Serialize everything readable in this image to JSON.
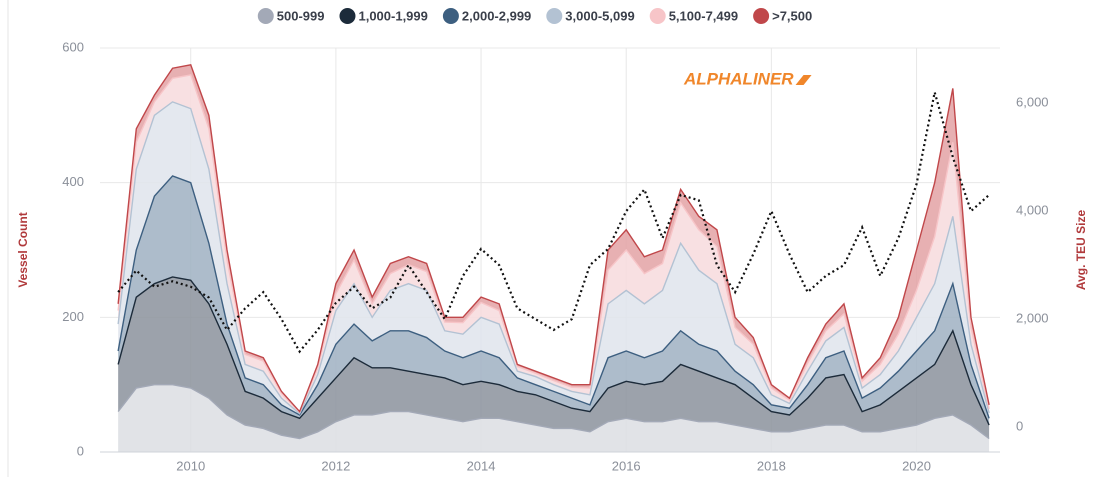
{
  "chart_data": {
    "type": "area",
    "stacked": true,
    "watermark": "ALPHALINER",
    "ylabel": "Vessel Count",
    "y2label": "Avg. TEU Size",
    "xlim": [
      2008.75,
      2021.15
    ],
    "xticks": [
      2010,
      2012,
      2014,
      2016,
      2018,
      2020
    ],
    "ylim": [
      0,
      600
    ],
    "yticks": [
      0,
      200,
      400,
      600
    ],
    "y2lim": [
      -460,
      7020
    ],
    "y2ticks": [
      0,
      {
        "value": 2000,
        "label": "2,000"
      },
      {
        "value": 4000,
        "label": "4,000"
      },
      {
        "value": 6000,
        "label": "6,000"
      }
    ],
    "grid": true,
    "legend": "top",
    "x": [
      2009,
      2009.25,
      2009.5,
      2009.75,
      2010,
      2010.25,
      2010.5,
      2010.75,
      2011,
      2011.25,
      2011.5,
      2011.75,
      2012,
      2012.25,
      2012.5,
      2012.75,
      2013,
      2013.25,
      2013.5,
      2013.75,
      2014,
      2014.25,
      2014.5,
      2014.75,
      2015,
      2015.25,
      2015.5,
      2015.75,
      2016,
      2016.25,
      2016.5,
      2016.75,
      2017,
      2017.25,
      2017.5,
      2017.75,
      2018,
      2018.25,
      2018.5,
      2018.75,
      2019,
      2019.25,
      2019.5,
      2019.75,
      2020,
      2020.25,
      2020.5,
      2020.75,
      2021
    ],
    "series": [
      {
        "name": "500-999",
        "color": "#a3a9b7",
        "fill": "#dcdee3",
        "values": [
          60,
          95,
          100,
          100,
          95,
          80,
          55,
          40,
          35,
          25,
          20,
          30,
          45,
          55,
          55,
          60,
          60,
          55,
          50,
          45,
          50,
          50,
          45,
          40,
          35,
          35,
          30,
          45,
          50,
          45,
          45,
          50,
          45,
          45,
          40,
          35,
          30,
          30,
          35,
          40,
          40,
          30,
          30,
          35,
          40,
          50,
          55,
          40,
          20
        ]
      },
      {
        "name": "1,000-1,999",
        "color": "#1c2b3a",
        "fill": "#8b929c",
        "values": [
          70,
          135,
          150,
          160,
          160,
          140,
          105,
          50,
          45,
          35,
          30,
          50,
          65,
          85,
          70,
          65,
          60,
          60,
          60,
          55,
          55,
          50,
          45,
          45,
          40,
          30,
          30,
          50,
          55,
          55,
          60,
          80,
          75,
          65,
          60,
          45,
          30,
          25,
          45,
          70,
          75,
          30,
          40,
          55,
          70,
          80,
          125,
          60,
          20
        ]
      },
      {
        "name": "2,000-2,999",
        "color": "#3d5f80",
        "fill": "#9fb0c2",
        "values": [
          20,
          70,
          130,
          150,
          145,
          90,
          30,
          20,
          20,
          10,
          5,
          20,
          50,
          50,
          40,
          55,
          60,
          55,
          40,
          40,
          45,
          40,
          20,
          15,
          15,
          15,
          10,
          45,
          45,
          40,
          45,
          50,
          40,
          40,
          20,
          20,
          10,
          10,
          20,
          30,
          35,
          20,
          25,
          30,
          40,
          50,
          70,
          30,
          10
        ]
      },
      {
        "name": "3,000-5,099",
        "color": "#b3c2d3",
        "fill": "#dfe4ec",
        "values": [
          40,
          120,
          120,
          110,
          110,
          110,
          60,
          20,
          20,
          10,
          2,
          15,
          50,
          60,
          35,
          60,
          70,
          70,
          30,
          35,
          50,
          50,
          10,
          12,
          10,
          10,
          15,
          80,
          90,
          80,
          90,
          130,
          110,
          100,
          40,
          40,
          15,
          7,
          20,
          25,
          35,
          15,
          20,
          30,
          50,
          70,
          100,
          30,
          8
        ]
      },
      {
        "name": "5,100-7,499",
        "color": "#f7c5c8",
        "fill": "#f7dadd",
        "values": [
          20,
          40,
          20,
          35,
          50,
          60,
          35,
          15,
          15,
          7,
          2,
          10,
          25,
          35,
          20,
          25,
          28,
          28,
          13,
          17,
          22,
          20,
          7,
          5,
          6,
          6,
          10,
          50,
          60,
          45,
          40,
          60,
          60,
          55,
          25,
          20,
          10,
          5,
          12,
          15,
          20,
          10,
          15,
          25,
          40,
          70,
          110,
          25,
          6
        ]
      },
      {
        "name": ">7,500",
        "color": "#c0474a",
        "fill": "#e3a2a4",
        "values": [
          10,
          20,
          10,
          15,
          15,
          20,
          15,
          5,
          5,
          3,
          1,
          5,
          15,
          15,
          10,
          15,
          12,
          12,
          7,
          8,
          8,
          10,
          3,
          3,
          4,
          4,
          5,
          30,
          30,
          25,
          20,
          20,
          20,
          25,
          15,
          10,
          5,
          3,
          8,
          10,
          15,
          5,
          10,
          25,
          60,
          80,
          80,
          15,
          6
        ]
      },
      {
        "type": "line",
        "axis": "y2",
        "color": "#111111",
        "dash": "dotted",
        "values": [
          2500,
          2900,
          2600,
          2700,
          2600,
          2400,
          1800,
          2200,
          2500,
          2000,
          1400,
          1800,
          2300,
          2600,
          2200,
          2400,
          3000,
          2500,
          2000,
          2800,
          3300,
          3000,
          2200,
          2000,
          1800,
          2000,
          3000,
          3300,
          4000,
          4400,
          3500,
          4300,
          4200,
          3000,
          2500,
          3200,
          4000,
          3200,
          2500,
          2800,
          3000,
          3700,
          2800,
          3500,
          4500,
          6200,
          5000,
          4000,
          4300
        ]
      }
    ]
  }
}
